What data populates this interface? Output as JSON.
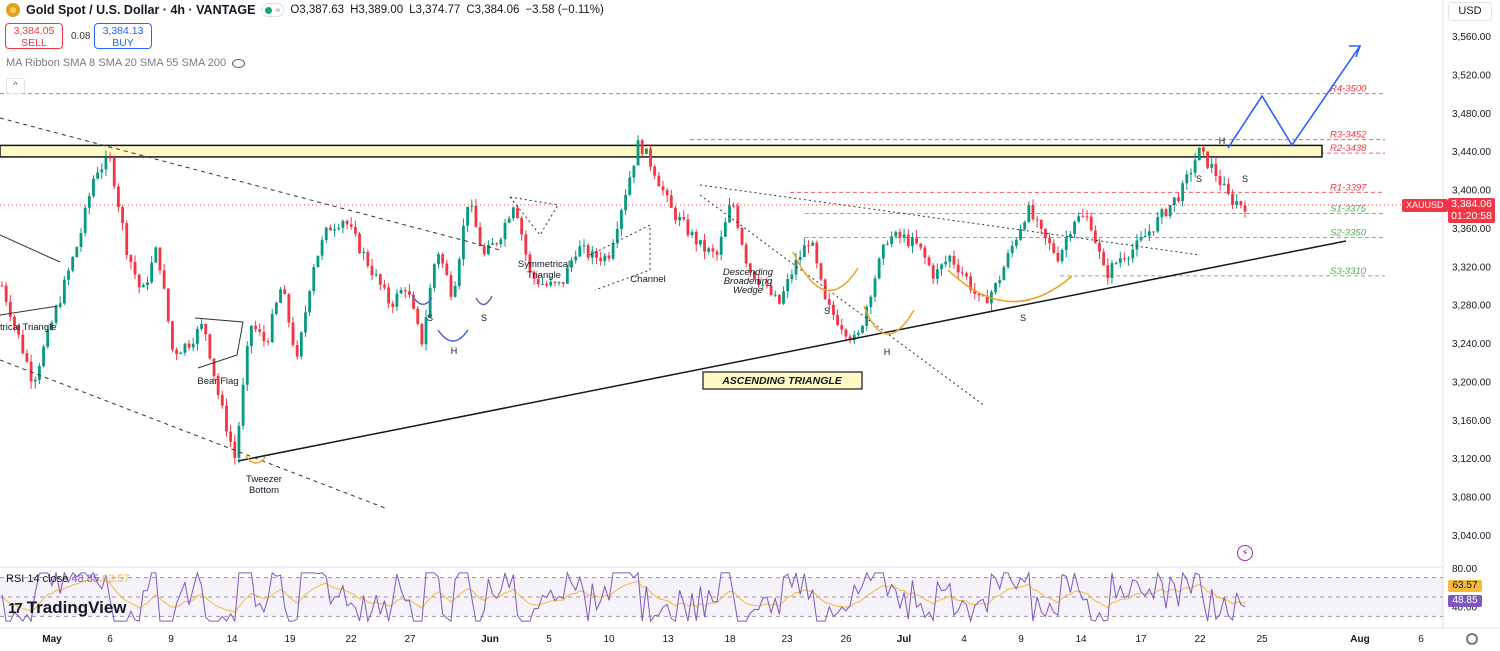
{
  "header": {
    "symbol": "Gold Spot / U.S. Dollar · 4h · VANTAGE",
    "open": "O3,387.63",
    "high": "H3,389.00",
    "low": "L3,374.77",
    "close": "C3,384.06",
    "change": "−3.58 (−0.11%)",
    "icon": "gold-coin-icon"
  },
  "trade": {
    "sell_price": "3,384.05",
    "sell_label": "SELL",
    "spread": "0.08",
    "buy_price": "3,384.13",
    "buy_label": "BUY"
  },
  "indicator_label": "MA Ribbon SMA 8 SMA 20 SMA 55 SMA 200",
  "currency": "USD",
  "price_tag": {
    "symbol": "XAUUSD",
    "price": "3,384.06",
    "timer": "01:20:58"
  },
  "rsi": {
    "label": "RSI 14 close",
    "value": "48.85",
    "ma_value": "63.57",
    "tag_ma": "63.57",
    "tag_value": "48.85"
  },
  "brand": "TradingView",
  "colors": {
    "up": "#089981",
    "down": "#f23645",
    "resistance": "#f23645",
    "support": "#4caf50",
    "projection": "#2962ff",
    "rsi": "#7e57c2",
    "rsi_ma": "#f5b93b",
    "pattern": "#f0a020"
  },
  "chart_data": {
    "type": "candlestick",
    "timeframe": "4h",
    "y_axis": {
      "ticks": [
        "3,560.00",
        "3,520.00",
        "3,480.00",
        "3,440.00",
        "3,400.00",
        "3,360.00",
        "3,320.00",
        "3,280.00",
        "3,240.00",
        "3,200.00",
        "3,160.00",
        "3,120.00",
        "3,080.00",
        "3,040.00"
      ],
      "range": [
        3020,
        3575
      ]
    },
    "x_axis": {
      "ticks": [
        "May",
        "6",
        "9",
        "14",
        "19",
        "22",
        "27",
        "Jun",
        "5",
        "10",
        "13",
        "18",
        "23",
        "26",
        "Jul",
        "4",
        "9",
        "14",
        "17",
        "22",
        "25",
        "Aug",
        "6"
      ]
    },
    "price_path": [
      3300,
      3250,
      3200,
      3250,
      3300,
      3350,
      3420,
      3430,
      3340,
      3290,
      3340,
      3230,
      3240,
      3260,
      3180,
      3120,
      3260,
      3240,
      3300,
      3220,
      3320,
      3360,
      3370,
      3340,
      3310,
      3280,
      3300,
      3240,
      3340,
      3290,
      3390,
      3330,
      3350,
      3390,
      3310,
      3300,
      3300,
      3340,
      3330,
      3330,
      3390,
      3450,
      3420,
      3380,
      3360,
      3340,
      3330,
      3390,
      3320,
      3300,
      3280,
      3320,
      3350,
      3280,
      3260,
      3240,
      3300,
      3350,
      3350,
      3340,
      3310,
      3330,
      3310,
      3280,
      3300,
      3340,
      3380,
      3350,
      3330,
      3370,
      3370,
      3310,
      3330,
      3340,
      3360,
      3380,
      3400,
      3440,
      3420,
      3390,
      3384
    ],
    "levels": [
      {
        "label": "R4-3500",
        "value": 3500,
        "kind": "resistance"
      },
      {
        "label": "R3-3452",
        "value": 3452,
        "kind": "resistance"
      },
      {
        "label": "R2-3438",
        "value": 3438,
        "kind": "resistance"
      },
      {
        "label": "R1-3397",
        "value": 3397,
        "kind": "resistance"
      },
      {
        "label": "S1-3375",
        "value": 3375,
        "kind": "support"
      },
      {
        "label": "S2-3350",
        "value": 3350,
        "kind": "support"
      },
      {
        "label": "S3-3310",
        "value": 3310,
        "kind": "support"
      }
    ],
    "annotations": [
      "Tweezer Bottom",
      "Bear Flag",
      "Symmetrical Triangle",
      "Channel",
      "Descending Broadening Wedge",
      "ASCENDING TRIANGLE",
      "S",
      "H",
      "S",
      "S",
      "H",
      "S",
      "S",
      "H",
      "S",
      "trical Triangle"
    ],
    "rsi_levels": {
      "upper": 70,
      "lower": 30
    }
  }
}
